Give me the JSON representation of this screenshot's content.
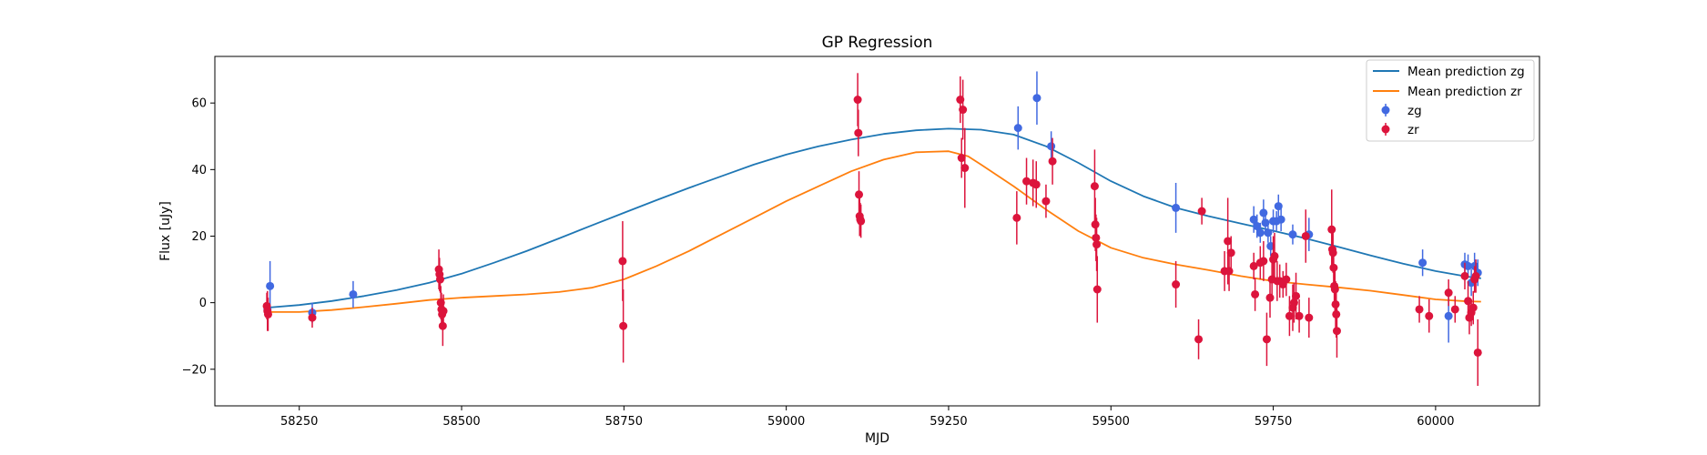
{
  "chart_data": {
    "type": "scatter",
    "title": "GP Regression",
    "xlabel": "MJD",
    "ylabel": "Flux [uJy]",
    "xlim": [
      58120,
      60160
    ],
    "ylim": [
      -31,
      74
    ],
    "xticks": [
      58250,
      58500,
      58750,
      59000,
      59250,
      59500,
      59750,
      60000
    ],
    "yticks": [
      -20,
      0,
      20,
      40,
      60
    ],
    "grid": false,
    "legend_position": "top-right",
    "legend": [
      "Mean prediction zg",
      "Mean prediction zr",
      "zg",
      "zr"
    ],
    "colors": {
      "zg_line": "#1f77b4",
      "zr_line": "#ff7f0e",
      "zg": "#4169e1",
      "zr": "#dc143c"
    },
    "series": [
      {
        "name": "Mean prediction zg",
        "kind": "line",
        "x": [
          58200,
          58250,
          58300,
          58350,
          58400,
          58450,
          58500,
          58550,
          58600,
          58650,
          58700,
          58750,
          58800,
          58850,
          58900,
          58950,
          59000,
          59050,
          59100,
          59150,
          59200,
          59250,
          59300,
          59350,
          59400,
          59450,
          59500,
          59550,
          59600,
          59650,
          59700,
          59750,
          59800,
          59850,
          59900,
          59950,
          60000,
          60050,
          60070
        ],
        "y": [
          -1.5,
          -0.7,
          0.5,
          2.0,
          3.8,
          6.0,
          8.7,
          12.0,
          15.5,
          19.3,
          23.2,
          27.0,
          30.8,
          34.5,
          38.0,
          41.5,
          44.5,
          47.0,
          49.0,
          50.7,
          51.8,
          52.3,
          52.0,
          50.5,
          47.0,
          42.0,
          36.5,
          32.0,
          28.5,
          26.0,
          23.8,
          21.6,
          19.3,
          16.8,
          14.2,
          11.7,
          9.5,
          7.8,
          7.3
        ]
      },
      {
        "name": "Mean prediction zr",
        "kind": "line",
        "x": [
          58200,
          58250,
          58300,
          58350,
          58400,
          58450,
          58500,
          58550,
          58600,
          58650,
          58700,
          58750,
          58800,
          58850,
          58900,
          58950,
          59000,
          59050,
          59100,
          59150,
          59200,
          59250,
          59280,
          59300,
          59350,
          59400,
          59450,
          59500,
          59550,
          59600,
          59650,
          59700,
          59750,
          59800,
          59850,
          59900,
          59950,
          60000,
          60050,
          60070
        ],
        "y": [
          -2.8,
          -2.8,
          -2.2,
          -1.3,
          -0.3,
          0.8,
          1.5,
          2.0,
          2.5,
          3.2,
          4.5,
          7.0,
          11.0,
          15.5,
          20.5,
          25.5,
          30.5,
          35.0,
          39.5,
          43.0,
          45.2,
          45.5,
          44.0,
          41.5,
          35.0,
          28.0,
          21.5,
          16.5,
          13.5,
          11.5,
          9.8,
          8.0,
          6.5,
          5.5,
          4.6,
          3.6,
          2.3,
          1.0,
          0.4,
          0.3
        ]
      },
      {
        "name": "zg",
        "kind": "errorbar",
        "x": [
          58201,
          58205,
          58270,
          58333,
          59357,
          59386,
          59408,
          59600,
          59720,
          59725,
          59730,
          59735,
          59738,
          59742,
          59746,
          59750,
          59755,
          59758,
          59762,
          59780,
          59805,
          59980,
          60020,
          60045,
          60050,
          60055,
          60060,
          60065
        ],
        "y": [
          -2,
          5,
          -3,
          2.5,
          52.5,
          61.5,
          47,
          28.5,
          25,
          23,
          21,
          27,
          24,
          21,
          17,
          24.5,
          24.5,
          29,
          25,
          20.5,
          20.5,
          12,
          -4,
          11.5,
          11,
          6,
          11,
          9
        ],
        "yerr": [
          4,
          7.5,
          3,
          4,
          6.5,
          8,
          4.5,
          7.5,
          4,
          3.5,
          3,
          4,
          3.5,
          3,
          3,
          3.5,
          3,
          3.5,
          3.5,
          3,
          5,
          4,
          8,
          3.5,
          3.5,
          4,
          4,
          4
        ]
      },
      {
        "name": "zr",
        "kind": "errorbar",
        "x": [
          58200,
          58201,
          58202,
          58270,
          58465,
          58466,
          58467,
          58468,
          58469,
          58470,
          58471,
          58472,
          58748,
          58749,
          59110,
          59111,
          59112,
          59113,
          59114,
          59115,
          59268,
          59270,
          59272,
          59275,
          59355,
          59370,
          59380,
          59385,
          59400,
          59410,
          59475,
          59476,
          59477,
          59478,
          59479,
          59600,
          59635,
          59640,
          59675,
          59680,
          59682,
          59685,
          59720,
          59722,
          59730,
          59735,
          59740,
          59745,
          59748,
          59750,
          59752,
          59756,
          59760,
          59765,
          59770,
          59775,
          59780,
          59782,
          59785,
          59790,
          59800,
          59805,
          59840,
          59841,
          59842,
          59843,
          59844,
          59845,
          59846,
          59847,
          59848,
          59975,
          59990,
          60020,
          60030,
          60045,
          60050,
          60052,
          60055,
          60058,
          60060,
          60062,
          60065
        ],
        "y": [
          -1,
          -2.5,
          -3.5,
          -4.5,
          10,
          8.5,
          7,
          0,
          -2,
          -3.5,
          -7,
          -2.5,
          12.5,
          -7,
          61,
          51,
          32.5,
          26,
          25,
          24.5,
          61,
          43.5,
          58,
          40.5,
          25.5,
          36.5,
          36,
          35.5,
          30.5,
          42.5,
          35,
          23.5,
          19.5,
          17.5,
          4,
          5.5,
          -11,
          27.5,
          9.5,
          18.5,
          9.5,
          15,
          11,
          2.5,
          12,
          12.5,
          -11,
          1.5,
          7,
          13,
          14,
          6.5,
          6.5,
          5.5,
          7,
          -4,
          -1.5,
          0,
          2,
          -4,
          20,
          -4.5,
          22,
          16,
          15,
          10.5,
          5,
          4,
          -0.5,
          -3.5,
          -8.5,
          -2,
          -4,
          3,
          -2,
          8,
          0.5,
          -4.5,
          -3,
          -1.5,
          7,
          8,
          -15
        ],
        "yerr": [
          4,
          6,
          5,
          3,
          6,
          5,
          4,
          5,
          5,
          4,
          6,
          5,
          12,
          11,
          8,
          7,
          7,
          6,
          5,
          5,
          7,
          6,
          9,
          12,
          8,
          7,
          7,
          7,
          5,
          7,
          11,
          8,
          7,
          8,
          10,
          7,
          6,
          4,
          6,
          13,
          6,
          5,
          4,
          5,
          5,
          6,
          8,
          6,
          5,
          7,
          7,
          6,
          5,
          4,
          5,
          6,
          7,
          6,
          7,
          5,
          8,
          6,
          12,
          6,
          6,
          6,
          6,
          7,
          7,
          7,
          8,
          4,
          5,
          4,
          4,
          4,
          6,
          5,
          4,
          5,
          4,
          5,
          10
        ]
      }
    ]
  }
}
